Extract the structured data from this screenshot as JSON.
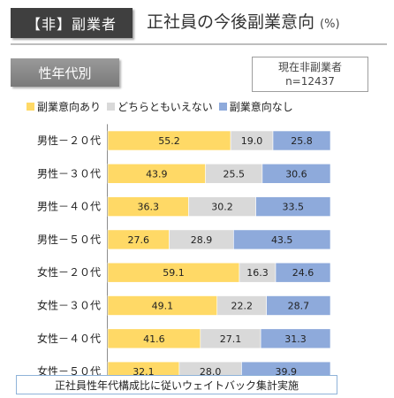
{
  "header": {
    "tag": "【非】副業者",
    "title": "正社員の今後副業意向",
    "unit": "(%)",
    "segment": "性年代別"
  },
  "sample": {
    "line1": "現在非副業者",
    "line2": "n=12437"
  },
  "footnote": "正社員性年代構成比に従いウェイトバック集計実施",
  "chart_data": {
    "type": "bar",
    "orientation": "horizontal",
    "stacked": true,
    "percent_stacked": true,
    "categories": [
      "男性－２０代",
      "男性－３０代",
      "男性－４０代",
      "男性－５０代",
      "女性－２０代",
      "女性－３０代",
      "女性－４０代",
      "女性－５０代"
    ],
    "series": [
      {
        "name": "副業意向あり",
        "color": "#ffd966",
        "values": [
          55.2,
          43.9,
          36.3,
          27.6,
          59.1,
          49.1,
          41.6,
          32.1
        ]
      },
      {
        "name": "どちらともいえない",
        "color": "#d9d9d9",
        "values": [
          19.0,
          25.5,
          30.2,
          28.9,
          16.3,
          22.2,
          27.1,
          28.0
        ]
      },
      {
        "name": "副業意向なし",
        "color": "#8eaadb",
        "values": [
          25.8,
          30.6,
          33.5,
          43.5,
          24.6,
          28.7,
          31.3,
          39.9
        ]
      }
    ],
    "xlim": [
      0,
      100
    ],
    "legend": "top",
    "grid": false,
    "value_format": "0.1"
  }
}
